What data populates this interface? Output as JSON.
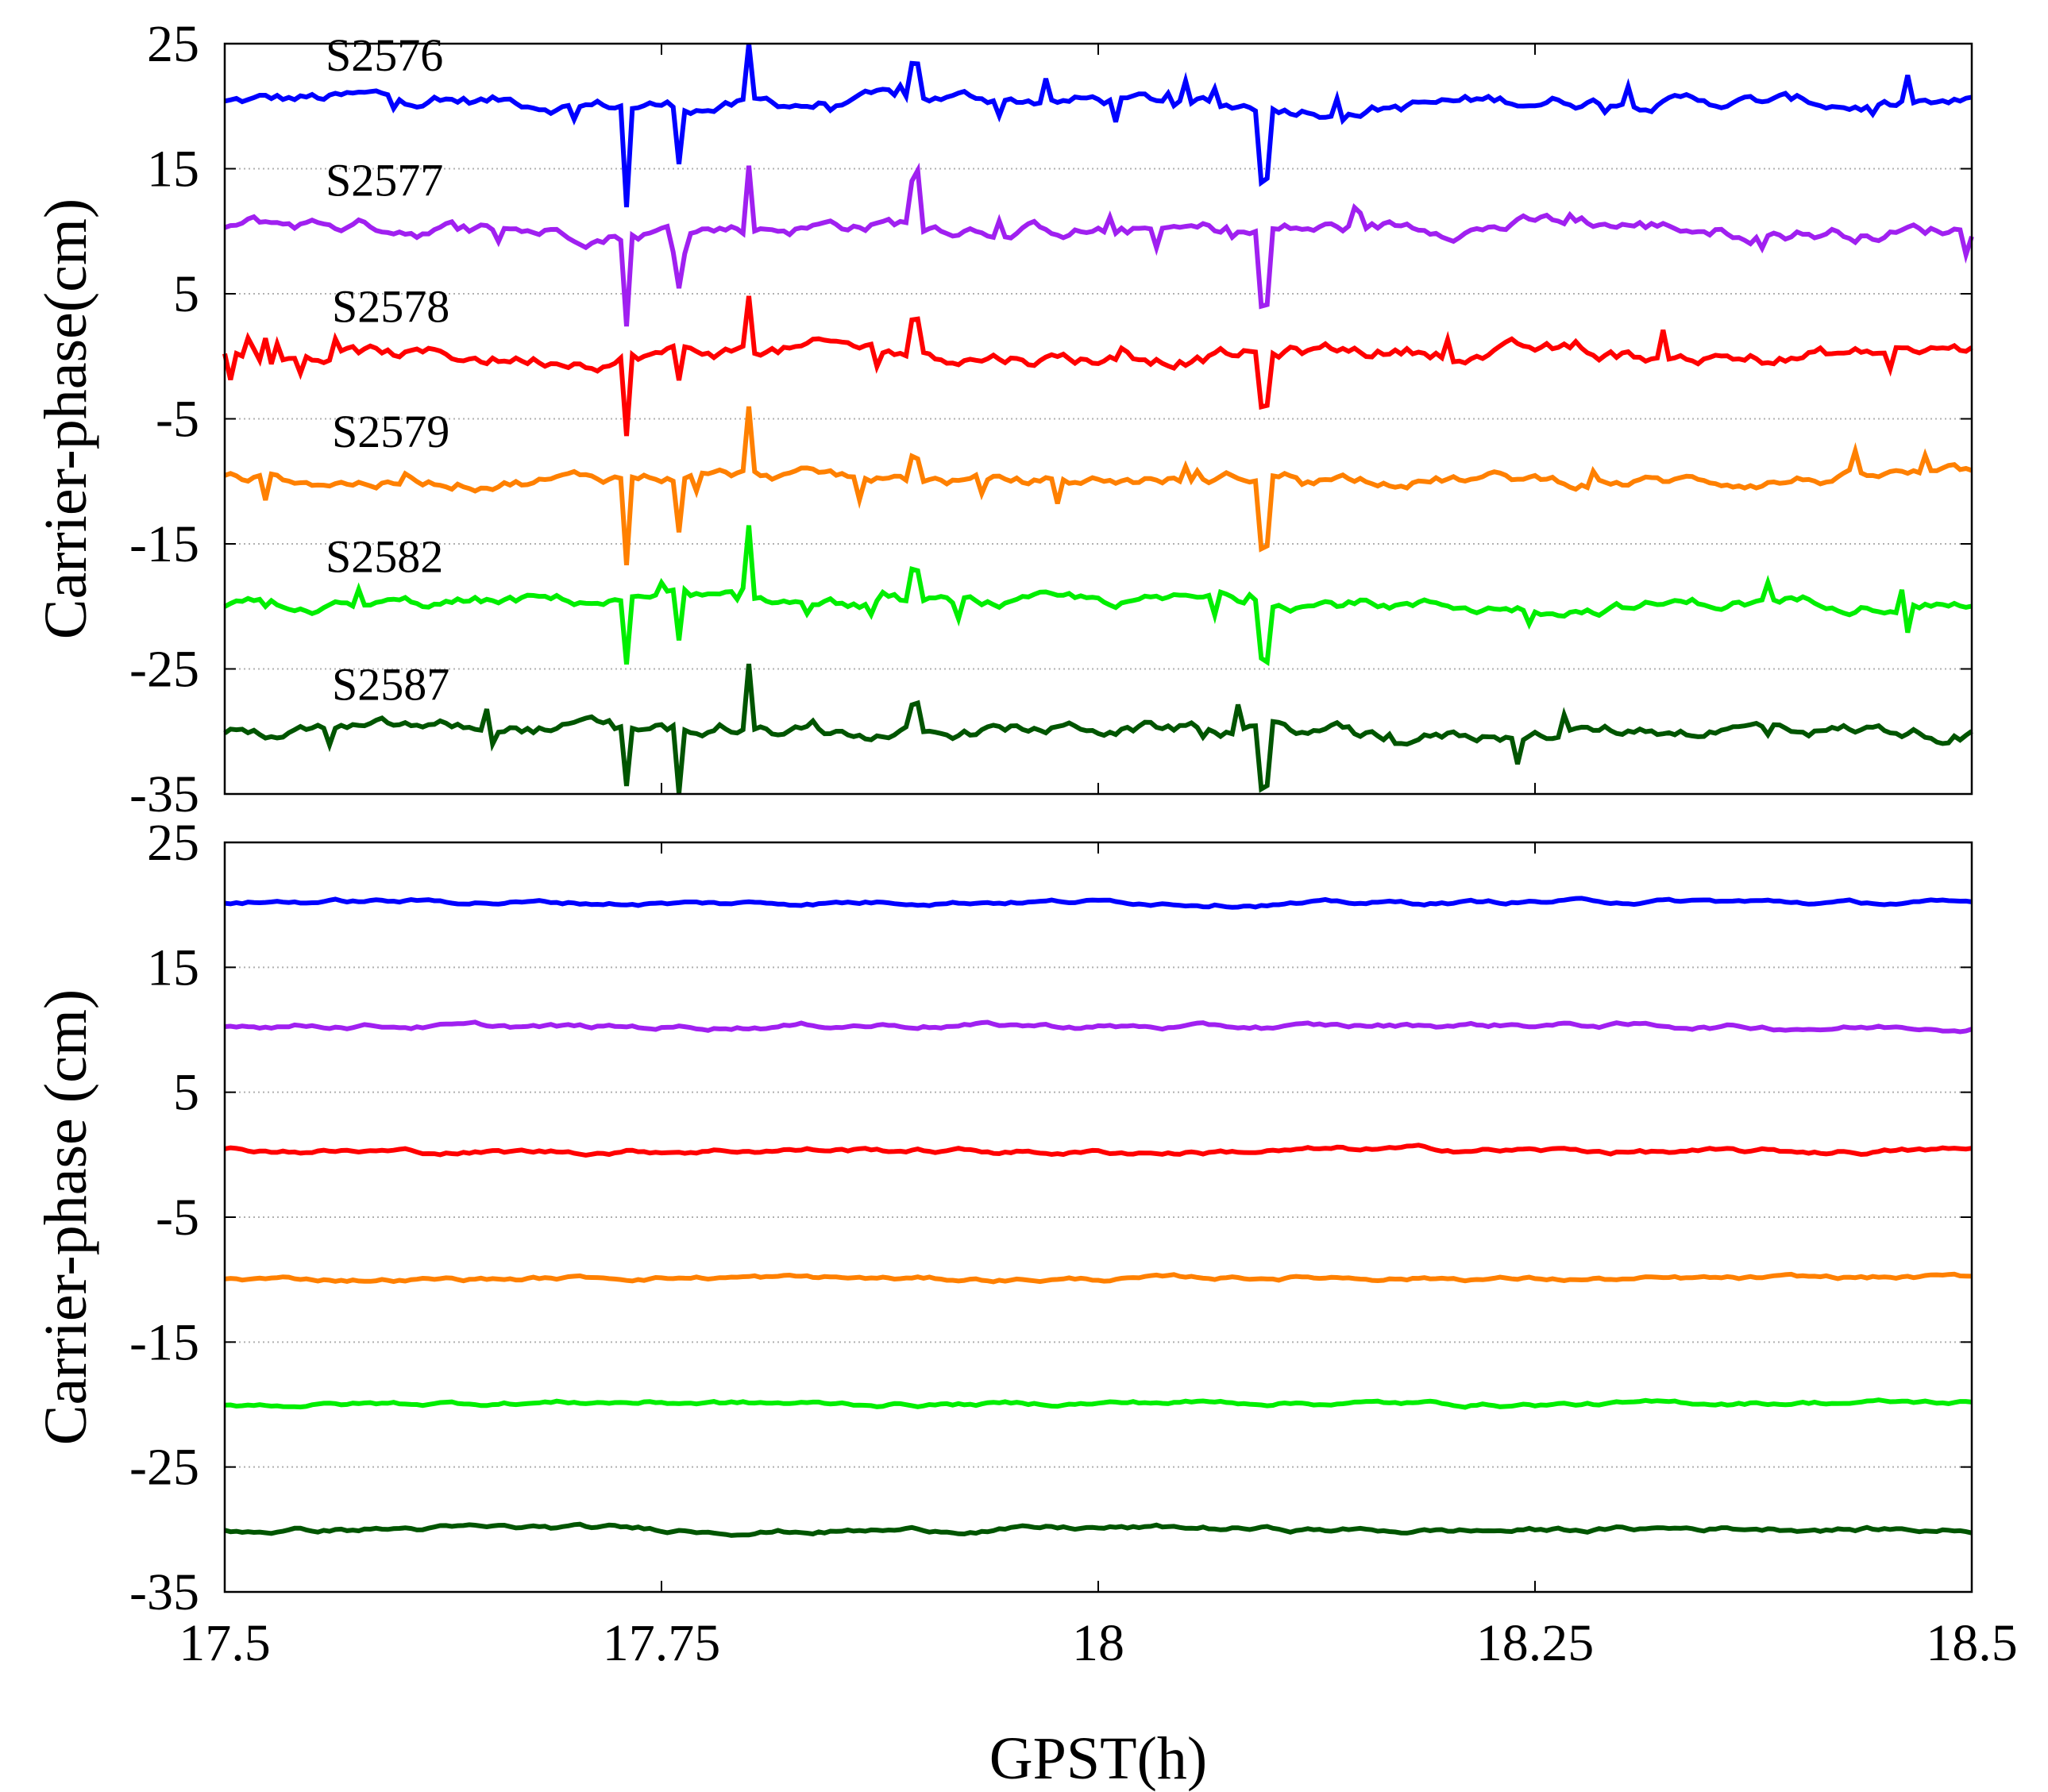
{
  "chart_data": [
    {
      "type": "line",
      "panel": "top",
      "title": "",
      "xlabel": "",
      "ylabel": "Carrier-phase(cm)",
      "xlim": [
        17.5,
        18.5
      ],
      "ylim": [
        -35,
        25
      ],
      "yticks": [
        "25",
        "15",
        "5",
        "-5",
        "-15",
        "-25",
        "-35"
      ],
      "grid": "horizontal dotted",
      "series": [
        {
          "name": "S2576",
          "color": "#0000ff",
          "baseline": 20.3,
          "noise": 0.8,
          "extra": [
            [
              17.73,
              -8
            ],
            [
              17.76,
              -4.5
            ],
            [
              17.8,
              4.5
            ],
            [
              17.895,
              2.5
            ],
            [
              18.095,
              -5.5
            ]
          ]
        },
        {
          "name": "S2577",
          "color": "#a020f0",
          "baseline": 10.3,
          "noise": 0.9,
          "extra": [
            [
              17.73,
              -7
            ],
            [
              17.76,
              -4.5
            ],
            [
              17.8,
              5
            ],
            [
              17.895,
              3.5
            ],
            [
              18.095,
              -6
            ]
          ]
        },
        {
          "name": "S2578",
          "color": "#ff0000",
          "baseline": 0.2,
          "noise": 0.9,
          "extra": [
            [
              17.73,
              -6.5
            ],
            [
              17.76,
              -2.5
            ],
            [
              17.8,
              5
            ],
            [
              17.895,
              2.5
            ],
            [
              18.095,
              -4.5
            ]
          ]
        },
        {
          "name": "S2579",
          "color": "#ff8000",
          "baseline": -9.8,
          "noise": 0.7,
          "extra": [
            [
              17.73,
              -7
            ],
            [
              17.76,
              -4
            ],
            [
              17.8,
              5
            ],
            [
              17.895,
              2
            ],
            [
              18.095,
              -5.5
            ]
          ]
        },
        {
          "name": "S2582",
          "color": "#00ee00",
          "baseline": -19.8,
          "noise": 0.7,
          "extra": [
            [
              17.73,
              -7
            ],
            [
              17.76,
              -4
            ],
            [
              17.8,
              5.5
            ],
            [
              17.895,
              2.5
            ],
            [
              18.095,
              -4.5
            ]
          ]
        },
        {
          "name": "S2587",
          "color": "#005500",
          "baseline": -30,
          "noise": 0.8,
          "extra": [
            [
              17.73,
              -5
            ],
            [
              17.76,
              -5
            ],
            [
              17.8,
              5
            ],
            [
              17.895,
              2
            ],
            [
              18.095,
              -5
            ]
          ]
        }
      ]
    },
    {
      "type": "line",
      "panel": "bottom",
      "title": "",
      "xlabel": "GPST(h)",
      "ylabel": "Carrier-phase (cm)",
      "xlim": [
        17.5,
        18.5
      ],
      "ylim": [
        -35,
        25
      ],
      "xticks": [
        "17.5",
        "17.75",
        "18",
        "18.25",
        "18.5"
      ],
      "yticks": [
        "25",
        "15",
        "5",
        "-5",
        "-15",
        "-25",
        "-35"
      ],
      "grid": "horizontal dotted",
      "series": [
        {
          "name": "S2576",
          "color": "#0000ff",
          "baseline": 20.2,
          "noise": 0.25
        },
        {
          "name": "S2577",
          "color": "#a020f0",
          "baseline": 10.3,
          "noise": 0.3
        },
        {
          "name": "S2578",
          "color": "#ff0000",
          "baseline": 0.3,
          "noise": 0.3
        },
        {
          "name": "S2579",
          "color": "#ff8000",
          "baseline": -9.9,
          "noise": 0.25
        },
        {
          "name": "S2582",
          "color": "#00ee00",
          "baseline": -19.9,
          "noise": 0.25
        },
        {
          "name": "S2587",
          "color": "#005500",
          "baseline": -30,
          "noise": 0.3
        }
      ]
    }
  ]
}
